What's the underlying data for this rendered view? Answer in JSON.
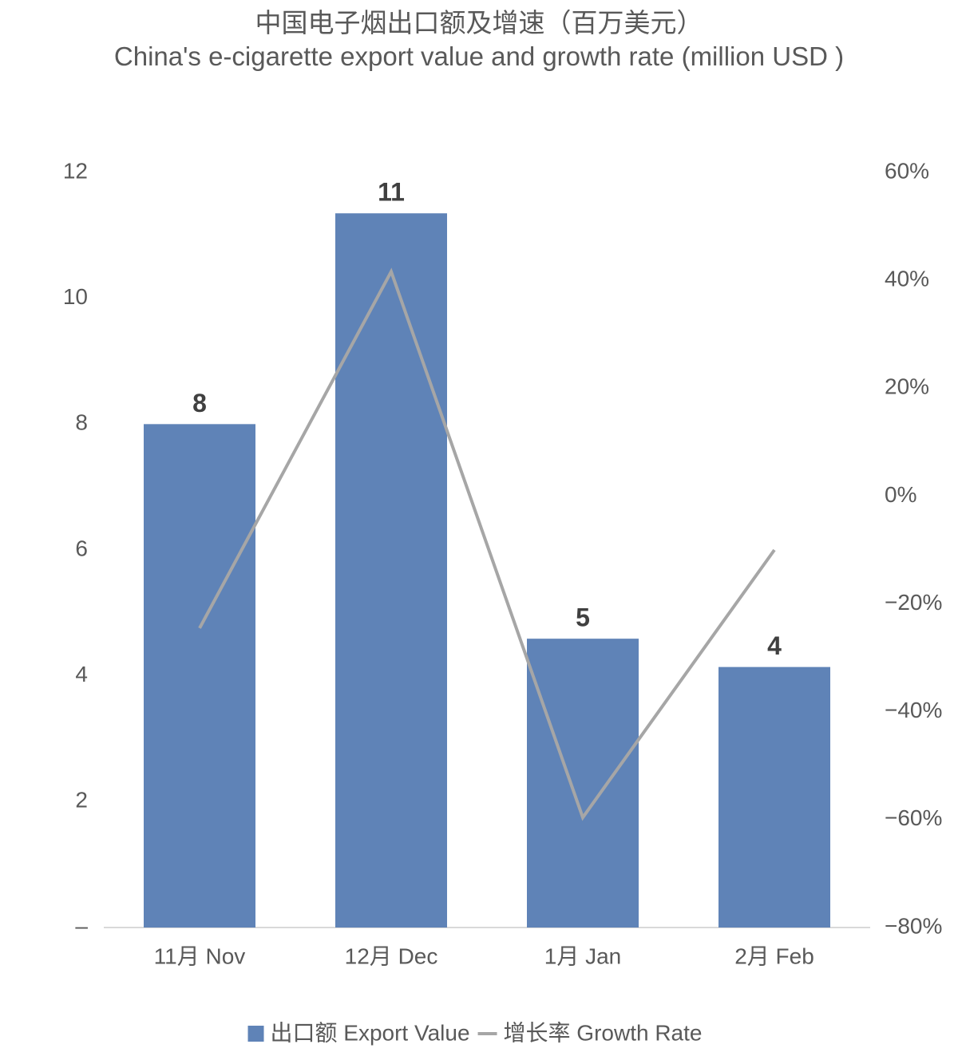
{
  "chart_data": {
    "type": "bar_line",
    "title": "中国电子烟出口额及增速（百万美元）",
    "subtitle": "China's e-cigarette export value and growth rate (million USD )",
    "categories": [
      "11月 Nov",
      "12月 Dec",
      "1月 Jan",
      "2月 Feb"
    ],
    "series": [
      {
        "name": "出口额 Export Value",
        "type": "bar",
        "color": "#5f83b7",
        "values": [
          8.0,
          11.35,
          4.59,
          4.14
        ],
        "value_labels": [
          "8",
          "11",
          "5",
          "4"
        ]
      },
      {
        "name": "增长率 Growth Rate",
        "type": "line",
        "axis": "y2",
        "color": "#a6a6a6",
        "values": [
          -24.5,
          41.6,
          -59.6,
          -10
        ]
      }
    ],
    "ylim": [
      0,
      12
    ],
    "yticks": [
      {
        "value": 0,
        "label": "–"
      },
      2,
      4,
      6,
      8,
      10,
      12
    ],
    "y2lim": [
      -80,
      60
    ],
    "y2ticks": [
      {
        "value": -80,
        "label": "−80%"
      },
      {
        "value": -60,
        "label": "−60%"
      },
      {
        "value": -40,
        "label": "−40%"
      },
      {
        "value": -20,
        "label": "−20%"
      },
      {
        "value": 0,
        "label": "0%"
      },
      {
        "value": 20,
        "label": "20%"
      },
      {
        "value": 40,
        "label": "40%"
      },
      {
        "value": 60,
        "label": "60%"
      }
    ],
    "legend": "bottom"
  }
}
